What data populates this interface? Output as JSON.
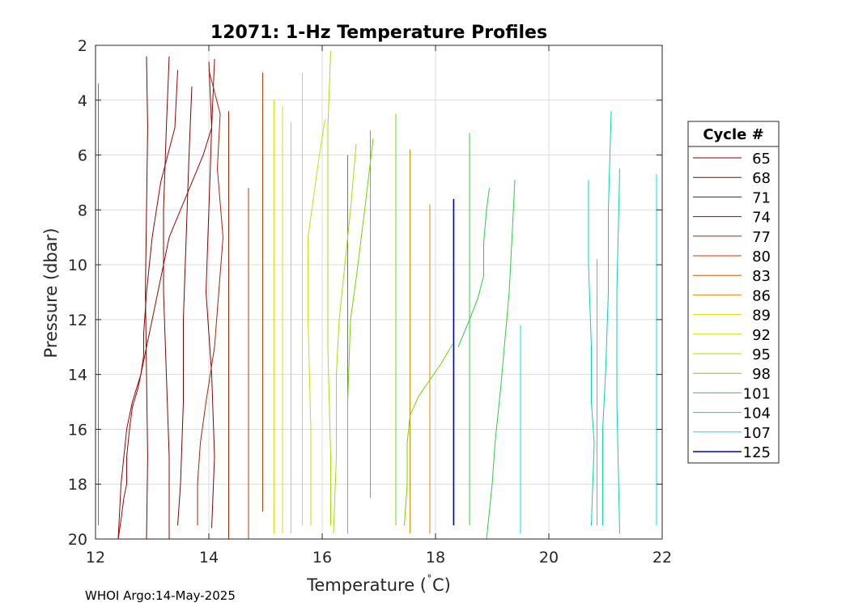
{
  "chart_data": {
    "type": "line",
    "title": "12071: 1-Hz Temperature Profiles",
    "xlabel": "Temperature (",
    "xlabel_degree": "˚",
    "xlabel_unit": "C)",
    "ylabel": "Pressure (dbar)",
    "xlim": [
      12,
      22
    ],
    "ylim": [
      2,
      20
    ],
    "y_reversed": true,
    "xticks": [
      12,
      14,
      16,
      18,
      20,
      22
    ],
    "yticks": [
      2,
      4,
      6,
      8,
      10,
      12,
      14,
      16,
      18,
      20
    ],
    "grid": true,
    "legend": {
      "title": "Cycle #",
      "placement": "outside-right"
    },
    "series": [
      {
        "name": "65",
        "color": "#800000",
        "lines": [
          {
            "t": [
              12.9,
              12.92,
              12.9,
              12.88,
              12.9,
              12.92,
              12.9
            ],
            "p": [
              2.4,
              5,
              8,
              11,
              14,
              17,
              20
            ]
          },
          {
            "t": [
              13.7,
              13.65,
              13.6,
              13.55,
              13.55,
              13.5,
              13.45
            ],
            "p": [
              3.5,
              6,
              9,
              12,
              15,
              18,
              19.5
            ]
          }
        ]
      },
      {
        "name": "68",
        "color": "#8e0000",
        "lines": [
          {
            "t": [
              13.3,
              13.25,
              13.2,
              13.2,
              13.25,
              13.3,
              13.3
            ],
            "p": [
              2.4,
              5,
              8,
              11,
              14,
              17,
              20
            ]
          },
          {
            "t": [
              14.0,
              14.05,
              14.0,
              13.95,
              14.05,
              14.1,
              14.05
            ],
            "p": [
              2.6,
              5,
              8,
              11,
              14,
              17,
              19.6
            ]
          }
        ]
      },
      {
        "name": "71",
        "color": "#9c0000",
        "lines": [
          {
            "t": [
              13.45,
              13.4,
              13.15,
              13.0,
              12.9,
              12.85,
              12.85
            ],
            "p": [
              2.9,
              5,
              7,
              9,
              11,
              12.5,
              13.3
            ]
          },
          {
            "t": [
              12.85,
              12.8,
              12.65,
              12.55,
              12.5,
              12.45,
              12.4
            ],
            "p": [
              13.3,
              14,
              15,
              16,
              17,
              18,
              20
            ]
          }
        ]
      },
      {
        "name": "74",
        "color": "#a60000",
        "lines": [
          {
            "t": [
              14.1,
              14.05,
              13.9,
              13.6,
              13.3,
              13.1,
              12.9,
              12.75
            ],
            "p": [
              2.5,
              5,
              6,
              7.5,
              9,
              11,
              13,
              14.5
            ]
          },
          {
            "t": [
              12.75,
              12.65,
              12.6,
              12.55,
              12.55,
              12.5,
              12.45,
              12.4
            ],
            "p": [
              14.5,
              15.2,
              16,
              17,
              18,
              18.5,
              19.3,
              20
            ]
          }
        ]
      },
      {
        "name": "77",
        "color": "#b22000",
        "lines": [
          {
            "t": [
              14.0,
              14.2,
              14.15,
              14.25,
              14.1,
              13.95,
              13.85,
              13.8,
              13.8
            ],
            "p": [
              2.9,
              4.5,
              6.5,
              9,
              13,
              15,
              16.5,
              18,
              19.5
            ]
          },
          {
            "t": [
              14.35,
              14.35,
              14.35,
              14.35
            ],
            "p": [
              4.4,
              8,
              14,
              20
            ]
          }
        ]
      },
      {
        "name": "80",
        "color": "#c43a00",
        "lines": [
          {
            "t": [
              14.95,
              14.95,
              14.95,
              14.95
            ],
            "p": [
              3.0,
              8,
              14,
              19
            ]
          },
          {
            "t": [
              14.7,
              14.7,
              14.7,
              14.7
            ],
            "p": [
              7.2,
              12,
              16,
              20
            ]
          }
        ]
      },
      {
        "name": "83",
        "color": "#d05a00",
        "lines": [
          {
            "t": [
              12.05,
              12.05,
              12.05,
              12.05
            ],
            "p": [
              3.4,
              8,
              14,
              19.5
            ]
          },
          {
            "t": [
              16.45,
              16.45,
              16.45,
              16.45
            ],
            "p": [
              6,
              10,
              15,
              19.8
            ]
          }
        ]
      },
      {
        "name": "86",
        "color": "#e08a00",
        "lines": [
          {
            "t": [
              16.85,
              16.85,
              16.85,
              16.85
            ],
            "p": [
              5.1,
              10,
              15,
              18.5
            ]
          },
          {
            "t": [
              17.55,
              17.55,
              17.55,
              17.55
            ],
            "p": [
              5.8,
              10,
              15,
              19.8
            ]
          },
          {
            "t": [
              17.9,
              17.9,
              17.9,
              17.9
            ],
            "p": [
              7.8,
              12,
              16,
              19.8
            ]
          }
        ]
      },
      {
        "name": "89",
        "color": "#e8d800",
        "lines": [
          {
            "t": [
              15.3,
              15.3,
              15.3,
              15.3
            ],
            "p": [
              4.2,
              9,
              14,
              19.8
            ]
          },
          {
            "t": [
              15.65,
              15.65,
              15.65,
              15.65
            ],
            "p": [
              3.0,
              8,
              14,
              19.5
            ]
          }
        ]
      },
      {
        "name": "92",
        "color": "#c8e000",
        "lines": [
          {
            "t": [
              15.45,
              15.45,
              15.45,
              15.45
            ],
            "p": [
              4.8,
              9,
              14,
              19.8
            ]
          },
          {
            "t": [
              16.05,
              15.95,
              15.85,
              15.75,
              15.75,
              15.8,
              15.8
            ],
            "p": [
              4.7,
              6,
              7.5,
              9,
              12,
              16,
              19.5
            ]
          },
          {
            "t": [
              15.15,
              15.15,
              15.15,
              15.15
            ],
            "p": [
              4.0,
              9,
              14,
              19.8
            ]
          }
        ]
      },
      {
        "name": "95",
        "color": "#a2e000",
        "lines": [
          {
            "t": [
              16.15,
              16.1,
              16.1,
              16.1,
              16.15,
              16.15
            ],
            "p": [
              2.2,
              5,
              9,
              13,
              17,
              19.5
            ]
          },
          {
            "t": [
              16.6,
              16.5,
              16.4,
              16.3,
              16.25,
              16.25,
              16.2
            ],
            "p": [
              5.6,
              8,
              10,
              12,
              14,
              17,
              19.8
            ]
          }
        ]
      },
      {
        "name": "98",
        "color": "#6cd800",
        "lines": [
          {
            "t": [
              16.9,
              16.75,
              16.6,
              16.5,
              16.45,
              16.45
            ],
            "p": [
              5.4,
              8,
              10.5,
              12,
              15,
              19.8
            ]
          },
          {
            "t": [
              17.3,
              17.3,
              17.3,
              17.3
            ],
            "p": [
              4.5,
              9,
              14,
              19.5
            ]
          },
          {
            "t": [
              18.3,
              18.1,
              17.9,
              17.7,
              17.55,
              17.5,
              17.5,
              17.45
            ],
            "p": [
              12.9,
              13.6,
              14.2,
              14.8,
              15.5,
              16.5,
              18,
              19.5
            ]
          }
        ]
      },
      {
        "name": "101",
        "color": "#28d040",
        "lines": [
          {
            "t": [
              18.95,
              18.9,
              18.85,
              18.85,
              18.75,
              18.6,
              18.4
            ],
            "p": [
              7.2,
              8,
              9.2,
              10.4,
              11.2,
              12,
              13
            ]
          },
          {
            "t": [
              19.4,
              19.35,
              19.3,
              19.15,
              19.05,
              19.0,
              18.9
            ],
            "p": [
              6.9,
              9,
              11,
              14.5,
              16.5,
              18,
              20
            ]
          },
          {
            "t": [
              18.6,
              18.6,
              18.6,
              18.6
            ],
            "p": [
              5.2,
              10,
              15,
              19.5
            ]
          }
        ]
      },
      {
        "name": "104",
        "color": "#00d8a8",
        "lines": [
          {
            "t": [
              20.7,
              20.7,
              20.75,
              20.75,
              20.8,
              20.75
            ],
            "p": [
              6.9,
              10,
              13,
              15,
              16.5,
              19.5
            ]
          },
          {
            "t": [
              21.1,
              21.05,
              21.05,
              21.0,
              20.95,
              20.95
            ],
            "p": [
              4.4,
              8,
              11,
              14,
              16,
              19.5
            ]
          },
          {
            "t": [
              21.25,
              21.2,
              21.2,
              21.25
            ],
            "p": [
              6.5,
              11,
              15,
              19.8
            ]
          }
        ]
      },
      {
        "name": "107",
        "color": "#00e0e0",
        "lines": [
          {
            "t": [
              21.9,
              21.9,
              21.9,
              21.9
            ],
            "p": [
              6.7,
              11,
              15,
              19.5
            ]
          },
          {
            "t": [
              19.5,
              19.5,
              19.5,
              19.5
            ],
            "p": [
              12.2,
              15,
              18,
              19.8
            ]
          },
          {
            "t": [
              20.85,
              20.85,
              20.85,
              20.85
            ],
            "p": [
              9.8,
              13,
              16,
              19.5
            ]
          }
        ]
      },
      {
        "name": "125",
        "color": "#0000d0",
        "lines": [
          {
            "t": [
              18.32,
              18.32,
              18.32,
              18.32
            ],
            "p": [
              7.6,
              12,
              16,
              19.5
            ]
          }
        ]
      }
    ]
  },
  "footer": "WHOI Argo:14-May-2025"
}
